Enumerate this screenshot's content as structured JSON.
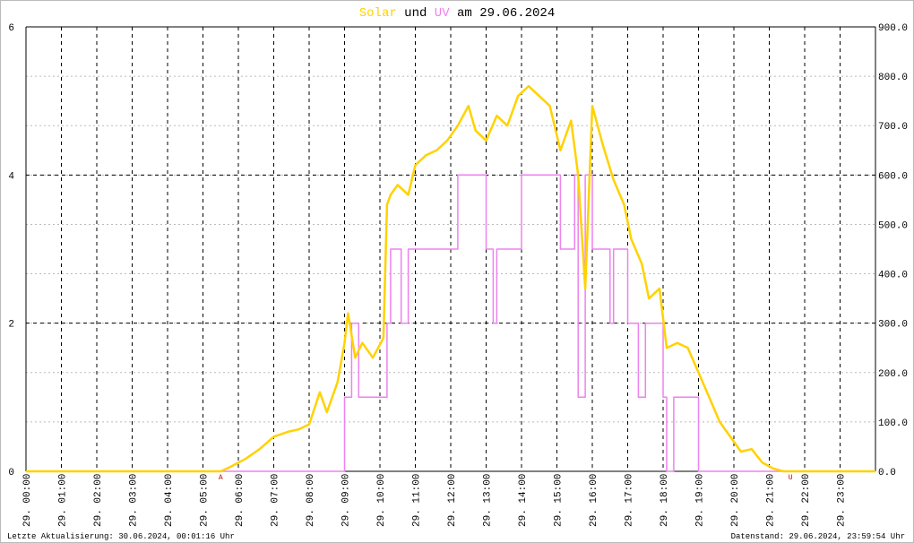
{
  "chart_data": {
    "type": "line",
    "title_words": [
      "und",
      "am 29.06.2024"
    ],
    "footer_left": "Letzte Aktualisierung: 30.06.2024, 00:01:16 Uhr",
    "footer_right": "Datenstand: 29.06.2024, 23:59:54 Uhr",
    "annotations": [
      {
        "text": "A",
        "x": 5.5
      },
      {
        "text": "U",
        "x": 21.6
      }
    ],
    "xlim": [
      0,
      24
    ],
    "xticks": [
      {
        "value": 0,
        "label": "29. 00:00"
      },
      {
        "value": 1,
        "label": "29. 01:00"
      },
      {
        "value": 2,
        "label": "29. 02:00"
      },
      {
        "value": 3,
        "label": "29. 03:00"
      },
      {
        "value": 4,
        "label": "29. 04:00"
      },
      {
        "value": 5,
        "label": "29. 05:00"
      },
      {
        "value": 6,
        "label": "29. 06:00"
      },
      {
        "value": 7,
        "label": "29. 07:00"
      },
      {
        "value": 8,
        "label": "29. 08:00"
      },
      {
        "value": 9,
        "label": "29. 09:00"
      },
      {
        "value": 10,
        "label": "29. 10:00"
      },
      {
        "value": 11,
        "label": "29. 11:00"
      },
      {
        "value": 12,
        "label": "29. 12:00"
      },
      {
        "value": 13,
        "label": "29. 13:00"
      },
      {
        "value": 14,
        "label": "29. 14:00"
      },
      {
        "value": 15,
        "label": "29. 15:00"
      },
      {
        "value": 16,
        "label": "29. 16:00"
      },
      {
        "value": 17,
        "label": "29. 17:00"
      },
      {
        "value": 18,
        "label": "29. 18:00"
      },
      {
        "value": 19,
        "label": "29. 19:00"
      },
      {
        "value": 20,
        "label": "29. 20:00"
      },
      {
        "value": 21,
        "label": "29. 21:00"
      },
      {
        "value": 22,
        "label": "29. 22:00"
      },
      {
        "value": 23,
        "label": "29. 23:00"
      }
    ],
    "ylim": [
      0,
      6
    ],
    "yticks": [
      0,
      2,
      4,
      6
    ],
    "y2lim": [
      0,
      900
    ],
    "y2ticks": [
      {
        "value": 0,
        "label": "0.0"
      },
      {
        "value": 100,
        "label": "100.0"
      },
      {
        "value": 200,
        "label": "200.0"
      },
      {
        "value": 300,
        "label": "300.0"
      },
      {
        "value": 400,
        "label": "400.0"
      },
      {
        "value": 500,
        "label": "500.0"
      },
      {
        "value": 600,
        "label": "600.0"
      },
      {
        "value": 700,
        "label": "700.0"
      },
      {
        "value": 800,
        "label": "800.0"
      },
      {
        "value": 900,
        "label": "900.0"
      }
    ],
    "grid": true,
    "series": [
      {
        "name": "Solar",
        "color": "#ffd200",
        "axis": "y2",
        "x": [
          0,
          5.5,
          5.8,
          6.2,
          6.6,
          7.0,
          7.4,
          7.7,
          8.0,
          8.3,
          8.5,
          8.8,
          9.0,
          9.1,
          9.3,
          9.5,
          9.8,
          10.1,
          10.2,
          10.3,
          10.5,
          10.8,
          11.0,
          11.3,
          11.6,
          11.9,
          12.2,
          12.5,
          12.7,
          13.0,
          13.3,
          13.6,
          13.9,
          14.2,
          14.5,
          14.8,
          15.1,
          15.4,
          15.6,
          15.8,
          16.0,
          16.3,
          16.6,
          16.9,
          17.1,
          17.4,
          17.6,
          17.9,
          18.1,
          18.4,
          18.7,
          19.0,
          19.3,
          19.6,
          19.9,
          20.2,
          20.5,
          20.8,
          21.1,
          21.4,
          24
        ],
        "values": [
          0,
          0,
          10,
          25,
          45,
          70,
          80,
          85,
          95,
          160,
          120,
          180,
          260,
          320,
          230,
          260,
          230,
          270,
          540,
          560,
          580,
          560,
          620,
          640,
          650,
          670,
          700,
          740,
          690,
          670,
          720,
          700,
          760,
          780,
          760,
          740,
          650,
          710,
          600,
          370,
          740,
          660,
          590,
          540,
          470,
          420,
          350,
          370,
          250,
          260,
          250,
          200,
          150,
          100,
          70,
          40,
          45,
          18,
          6,
          0,
          0
        ]
      },
      {
        "name": "UV",
        "color": "#ee82ee",
        "axis": "y",
        "x": [
          0,
          9.0,
          9.0,
          9.2,
          9.2,
          9.4,
          9.4,
          10.2,
          10.2,
          10.3,
          10.3,
          10.6,
          10.6,
          10.8,
          10.8,
          12.2,
          12.2,
          13.0,
          13.0,
          13.2,
          13.2,
          13.3,
          13.3,
          14.0,
          14.0,
          15.1,
          15.1,
          15.5,
          15.5,
          15.6,
          15.6,
          15.8,
          15.8,
          16.0,
          16.0,
          16.5,
          16.5,
          16.6,
          16.6,
          17.0,
          17.0,
          17.3,
          17.3,
          17.5,
          17.5,
          18.0,
          18.0,
          18.1,
          18.1,
          18.3,
          18.3,
          19.0,
          19.0,
          24
        ],
        "values": [
          0,
          0,
          1,
          1,
          2,
          2,
          1,
          1,
          2,
          2,
          3,
          3,
          2,
          2,
          3,
          3,
          4,
          4,
          3,
          3,
          2,
          2,
          3,
          3,
          4,
          4,
          3,
          3,
          4,
          4,
          1,
          1,
          4,
          4,
          3,
          3,
          2,
          2,
          3,
          3,
          2,
          2,
          1,
          1,
          2,
          2,
          1,
          1,
          0,
          0,
          1,
          1,
          0,
          0
        ]
      }
    ]
  }
}
